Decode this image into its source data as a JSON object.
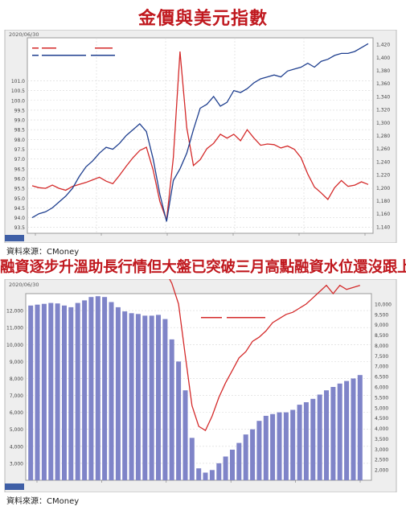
{
  "headings": {
    "chart1_title": "金價與美元指數",
    "chart2_title": "融資逐步升溫助長行情但大盤已突破三月高點融資水位還沒跟上"
  },
  "sources": {
    "chart1": "資料來源：CMoney",
    "chart2": "資料來源：CMoney"
  },
  "colors": {
    "title": "#c0181e",
    "red_series": "#d42a2a",
    "blue_series": "#1f3f8f",
    "bar_series": "#7f84c8",
    "panel_bg": "#eeeeee",
    "plot_bg": "#ffffff"
  },
  "chart_data": [
    {
      "type": "line",
      "date_label": "2020/06/30",
      "x": [
        0,
        2,
        4,
        6,
        8,
        10,
        12,
        14,
        16,
        18,
        20,
        22,
        24,
        26,
        28,
        30,
        32,
        34,
        36,
        38,
        40,
        42,
        44,
        46,
        48,
        50,
        52,
        54,
        56,
        58,
        60,
        62,
        64,
        66,
        68,
        70,
        72,
        74,
        76,
        78,
        80,
        82,
        84,
        86,
        88,
        90,
        92,
        94,
        96,
        98,
        100
      ],
      "series": [
        {
          "axis": "left",
          "color": "#1f3f8f",
          "ticks": [
            "93.5",
            "94.0",
            "94.5",
            "95.0",
            "95.5",
            "96.0",
            "96.5",
            "97.0",
            "97.5",
            "98.0",
            "98.5",
            "99.0",
            "99.5",
            "100.0",
            "100.5",
            "101.0"
          ],
          "values": [
            94.0,
            94.2,
            94.3,
            94.5,
            94.8,
            95.1,
            95.5,
            96.1,
            96.6,
            96.9,
            97.3,
            97.6,
            97.5,
            97.8,
            98.2,
            98.5,
            98.8,
            98.4,
            97.0,
            95.2,
            93.8,
            95.9,
            96.5,
            97.3,
            98.5,
            99.6,
            99.8,
            100.2,
            99.7,
            99.9,
            100.5,
            100.4,
            100.6,
            100.9,
            101.1,
            101.2,
            101.3,
            101.2,
            101.5,
            101.6,
            101.7,
            101.9,
            101.7,
            102.0,
            102.1,
            102.3,
            102.4,
            102.4,
            102.5,
            102.7,
            102.9
          ]
        },
        {
          "axis": "right",
          "color": "#d42a2a",
          "ticks": [
            "1,140",
            "1,160",
            "1,180",
            "1,200",
            "1,220",
            "1,240",
            "1,260",
            "1,280",
            "1,300",
            "1,320",
            "1,340",
            "1,360",
            "1,380",
            "1,400",
            "1,420"
          ],
          "values": [
            1203,
            1200,
            1199,
            1204,
            1199,
            1196,
            1202,
            1205,
            1208,
            1212,
            1216,
            1210,
            1206,
            1219,
            1233,
            1246,
            1257,
            1262,
            1227,
            1179,
            1150,
            1246,
            1409,
            1292,
            1234,
            1243,
            1260,
            1268,
            1282,
            1276,
            1282,
            1272,
            1289,
            1276,
            1265,
            1267,
            1266,
            1261,
            1264,
            1259,
            1246,
            1221,
            1201,
            1192,
            1182,
            1200,
            1211,
            1202,
            1204,
            1209,
            1205
          ]
        }
      ]
    },
    {
      "type": "bar",
      "date_label": "2020/06/30",
      "left_ticks": [
        "3,000",
        "4,000",
        "5,000",
        "6,000",
        "7,000",
        "8,000",
        "9,000",
        "10,000",
        "11,000",
        "12,000"
      ],
      "right_ticks": [
        "2,000",
        "2,500",
        "3,000",
        "3,500",
        "4,000",
        "4,500",
        "5,000",
        "5,500",
        "6,000",
        "6,500",
        "7,000",
        "7,500",
        "8,000",
        "8,500",
        "9,000",
        "9,500",
        "10,000"
      ],
      "series": [
        {
          "type": "bar",
          "axis": "left",
          "color": "#7f84c8",
          "values": [
            12300,
            12350,
            12400,
            12450,
            12420,
            12300,
            12200,
            12450,
            12600,
            12800,
            12850,
            12800,
            12500,
            12200,
            11950,
            11850,
            11800,
            11700,
            11700,
            11750,
            11500,
            10300,
            9000,
            7300,
            4500,
            2700,
            2450,
            2600,
            3000,
            3400,
            3800,
            4200,
            4700,
            5000,
            5500,
            5800,
            5900,
            6000,
            6000,
            6150,
            6450,
            6600,
            6800,
            7050,
            7300,
            7500,
            7700,
            7850,
            8000,
            8200
          ]
        },
        {
          "type": "line",
          "axis": "right",
          "color": "#d42a2a",
          "values": [
            11900,
            11850,
            11800,
            11850,
            11950,
            11900,
            12200,
            12150,
            12250,
            12400,
            12350,
            12600,
            12200,
            12000,
            11900,
            11850,
            11950,
            11850,
            11800,
            11700,
            11600,
            11000,
            10000,
            7500,
            5100,
            4100,
            3900,
            4600,
            5500,
            6200,
            6800,
            7400,
            7700,
            8200,
            8400,
            8700,
            9100,
            9300,
            9500,
            9600,
            9800,
            10000,
            10300,
            10600,
            10900,
            10500,
            10900,
            10700,
            10800,
            10900
          ]
        }
      ]
    }
  ]
}
